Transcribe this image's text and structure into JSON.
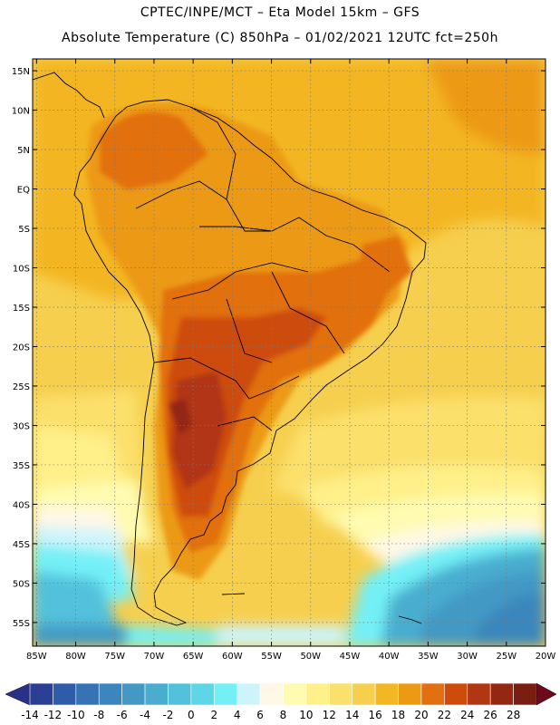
{
  "header": {
    "line1": "CPTEC/INPE/MCT –  Eta Model 15km – GFS",
    "line2": "Absolute Temperature (C) 850hPa – 01/02/2021 12UTC fct=250h"
  },
  "map": {
    "lat_labels": [
      "15N",
      "10N",
      "5N",
      "EQ",
      "5S",
      "10S",
      "15S",
      "20S",
      "25S",
      "30S",
      "35S",
      "40S",
      "45S",
      "50S",
      "55S"
    ],
    "lon_labels": [
      "85W",
      "80W",
      "75W",
      "70W",
      "65W",
      "60W",
      "55W",
      "50W",
      "45W",
      "40W",
      "35W",
      "30W",
      "25W",
      "20W"
    ],
    "lat_values": [
      15,
      10,
      5,
      0,
      -5,
      -10,
      -15,
      -20,
      -25,
      -30,
      -35,
      -40,
      -45,
      -50,
      -55
    ],
    "lon_values": [
      -85,
      -80,
      -75,
      -70,
      -65,
      -60,
      -55,
      -50,
      -45,
      -40,
      -35,
      -30,
      -25,
      -20
    ],
    "extent": {
      "lon_min": -85.5,
      "lon_max": -20,
      "lat_min": -58,
      "lat_max": 16.5
    },
    "grid": "dotted",
    "variable": "Absolute Temperature",
    "units": "C",
    "level": "850hPa"
  },
  "colorbar": {
    "labels": [
      "-14",
      "-12",
      "-10",
      "-8",
      "-6",
      "-4",
      "-2",
      "0",
      "2",
      "4",
      "6",
      "8",
      "10",
      "12",
      "14",
      "16",
      "18",
      "20",
      "22",
      "24",
      "26",
      "28"
    ],
    "colors": [
      "#2b3f94",
      "#2f5ca8",
      "#3573b4",
      "#3b86bc",
      "#4399c4",
      "#4aadcf",
      "#53c1dc",
      "#5fd6e8",
      "#73f0f6",
      "#cdf4fb",
      "#fff8e6",
      "#fffbb0",
      "#fff08a",
      "#fbe06c",
      "#f6cf4e",
      "#f3b624",
      "#ec9a14",
      "#e27010",
      "#cd4c0c",
      "#b13612",
      "#942712",
      "#7a1d12"
    ],
    "under_color": "#2a2f88",
    "over_color": "#6e0a1a"
  }
}
